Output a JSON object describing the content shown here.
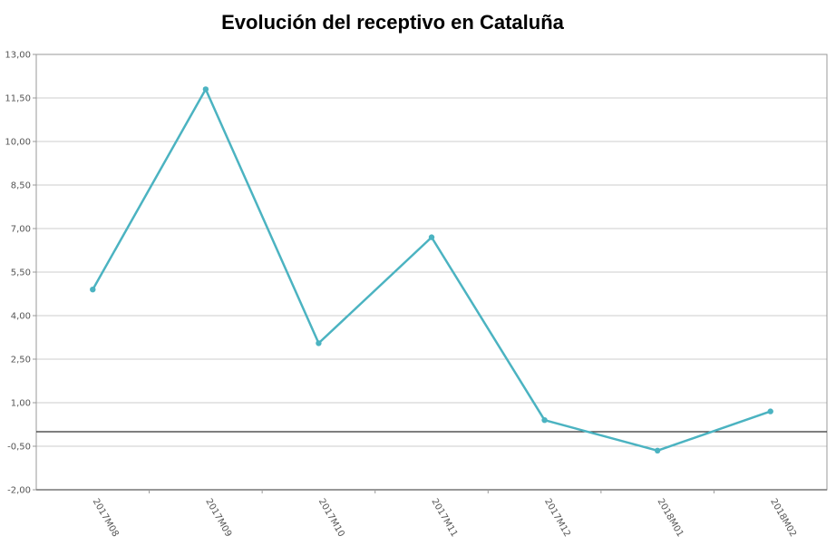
{
  "chart_data": {
    "type": "line",
    "title": "Evolución del receptivo en Cataluña",
    "xlabel": "",
    "ylabel": "",
    "categories": [
      "2017M08",
      "2017M09",
      "2017M10",
      "2017M11",
      "2017M12",
      "2018M01",
      "2018M02"
    ],
    "series": [
      {
        "values": [
          4.9,
          11.8,
          3.05,
          6.7,
          0.4,
          -0.65,
          0.7
        ]
      }
    ],
    "ylim": [
      -2,
      13
    ],
    "yticks": [
      13,
      11.5,
      10,
      8.5,
      7,
      5.5,
      4,
      2.5,
      1,
      -0.5,
      -2
    ],
    "ytick_labels": [
      "13,00",
      "11,50",
      "10,00",
      "8,50",
      "7,00",
      "5,50",
      "4,00",
      "2,50",
      "1,00",
      "-0,50",
      "-2,00"
    ],
    "zero_line": true,
    "grid": true,
    "line_color": "#4bb3c1",
    "grid_color": "#cccccc",
    "axis_color": "#999999"
  }
}
